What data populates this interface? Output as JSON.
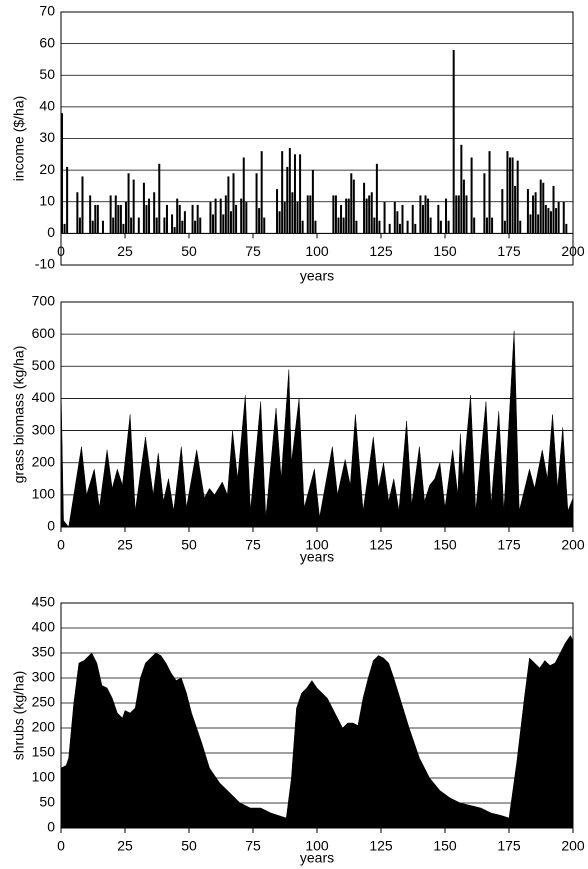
{
  "chart_data": [
    {
      "type": "bar",
      "x_label": "years",
      "y_label": "income ($/ha)",
      "color": "#000000",
      "grid": true,
      "xlim": [
        0,
        200
      ],
      "xticks": [
        0,
        25,
        50,
        75,
        100,
        125,
        150,
        175,
        200
      ],
      "ylim": [
        -10,
        70
      ],
      "yticks": [
        -10,
        0,
        10,
        20,
        30,
        40,
        50,
        60,
        70
      ],
      "x": [
        0,
        1,
        2,
        6,
        7,
        8,
        11,
        12,
        13,
        14,
        16,
        19,
        20,
        21,
        22,
        23,
        24,
        25,
        26,
        27,
        28,
        30,
        32,
        33,
        34,
        36,
        37,
        38,
        40,
        41,
        43,
        44,
        45,
        46,
        47,
        48,
        51,
        52,
        53,
        54,
        58,
        59,
        60,
        62,
        63,
        64,
        65,
        66,
        67,
        68,
        70,
        71,
        72,
        76,
        77,
        78,
        79,
        84,
        85,
        86,
        87,
        88,
        89,
        90,
        91,
        92,
        93,
        94,
        96,
        97,
        98,
        99,
        106,
        107,
        108,
        109,
        110,
        111,
        112,
        113,
        114,
        115,
        118,
        119,
        120,
        121,
        122,
        123,
        124,
        126,
        128,
        130,
        131,
        132,
        133,
        135,
        137,
        138,
        140,
        141,
        142,
        143,
        144,
        147,
        148,
        150,
        151,
        153,
        154,
        155,
        156,
        157,
        158,
        160,
        161,
        165,
        166,
        167,
        168,
        172,
        173,
        174,
        175,
        176,
        177,
        178,
        179,
        182,
        183,
        184,
        185,
        186,
        187,
        188,
        189,
        190,
        191,
        192,
        193,
        194,
        196,
        197
      ],
      "values": [
        38,
        3,
        21,
        13,
        5,
        18,
        12,
        4,
        9,
        9,
        4,
        12,
        5,
        12,
        9,
        9,
        3,
        10,
        19,
        5,
        17,
        5,
        16,
        9,
        11,
        13,
        5,
        22,
        5,
        9,
        6,
        2,
        11,
        9,
        4,
        7,
        9,
        4,
        9,
        5,
        10,
        6,
        11,
        11,
        6,
        12,
        18,
        7,
        19,
        9,
        11,
        24,
        10,
        19,
        8,
        26,
        5,
        14,
        7,
        26,
        10,
        21,
        27,
        13,
        25,
        10,
        25,
        4,
        12,
        12,
        20,
        4,
        12,
        12,
        5,
        9,
        5,
        11,
        11,
        19,
        17,
        4,
        16,
        11,
        12,
        13,
        5,
        22,
        4,
        10,
        3,
        10,
        7,
        3,
        9,
        4,
        9,
        3,
        12,
        9,
        12,
        11,
        5,
        9,
        4,
        11,
        4,
        58,
        12,
        12,
        28,
        17,
        12,
        24,
        5,
        19,
        5,
        26,
        5,
        14,
        4,
        26,
        24,
        24,
        15,
        23,
        4,
        14,
        6,
        12,
        13,
        6,
        17,
        16,
        9,
        8,
        7,
        15,
        8,
        10,
        10,
        3
      ]
    },
    {
      "type": "area",
      "x_label": "years",
      "y_label": "grass biomass (kg/ha)",
      "color": "#000000",
      "grid": true,
      "xlim": [
        0,
        200
      ],
      "xticks": [
        0,
        25,
        50,
        75,
        100,
        125,
        150,
        175,
        200
      ],
      "ylim": [
        0,
        700
      ],
      "yticks": [
        0,
        100,
        200,
        300,
        400,
        500,
        600,
        700
      ],
      "x": [
        0,
        1,
        3,
        8,
        10,
        13,
        15,
        18,
        20,
        22,
        24,
        27,
        29,
        33,
        36,
        38,
        40,
        42,
        44,
        47,
        49,
        53,
        56,
        58,
        60,
        63,
        65,
        67,
        69,
        72,
        74,
        78,
        80,
        84,
        86,
        89,
        90,
        93,
        95,
        99,
        101,
        106,
        108,
        111,
        113,
        115,
        118,
        122,
        124,
        126,
        128,
        130,
        132,
        135,
        137,
        140,
        142,
        144,
        146,
        148,
        150,
        153,
        155,
        156,
        157,
        160,
        162,
        166,
        168,
        171,
        173,
        177,
        179,
        183,
        185,
        188,
        190,
        192,
        194,
        196,
        198,
        200
      ],
      "values": [
        440,
        20,
        0,
        250,
        100,
        180,
        60,
        240,
        120,
        180,
        130,
        350,
        50,
        280,
        100,
        230,
        80,
        150,
        50,
        250,
        60,
        240,
        90,
        120,
        100,
        140,
        100,
        300,
        150,
        410,
        50,
        390,
        30,
        370,
        150,
        490,
        200,
        400,
        60,
        180,
        30,
        250,
        100,
        210,
        130,
        350,
        50,
        280,
        120,
        200,
        80,
        150,
        50,
        330,
        70,
        250,
        80,
        130,
        150,
        200,
        60,
        240,
        100,
        290,
        150,
        410,
        50,
        390,
        70,
        360,
        50,
        610,
        50,
        180,
        120,
        240,
        150,
        350,
        120,
        310,
        50,
        90
      ]
    },
    {
      "type": "area",
      "x_label": "years",
      "y_label": "shrubs (kg/ha)",
      "color": "#000000",
      "grid": true,
      "xlim": [
        0,
        200
      ],
      "xticks": [
        0,
        25,
        50,
        75,
        100,
        125,
        150,
        175,
        200
      ],
      "ylim": [
        0,
        450
      ],
      "yticks": [
        0,
        50,
        100,
        150,
        200,
        250,
        300,
        350,
        400,
        450
      ],
      "x": [
        0,
        2,
        3,
        5,
        7,
        9,
        12,
        14,
        16,
        18,
        20,
        22,
        24,
        25,
        27,
        29,
        31,
        33,
        35,
        37,
        39,
        41,
        43,
        45,
        47,
        49,
        51,
        55,
        58,
        62,
        66,
        70,
        74,
        78,
        82,
        85,
        88,
        90,
        92,
        94,
        96,
        98,
        100,
        102,
        104,
        106,
        108,
        110,
        112,
        114,
        116,
        118,
        120,
        122,
        124,
        126,
        128,
        130,
        133,
        136,
        140,
        144,
        148,
        152,
        156,
        160,
        164,
        168,
        172,
        175,
        178,
        181,
        183,
        185,
        187,
        189,
        191,
        193,
        195,
        197,
        199,
        200
      ],
      "values": [
        120,
        125,
        140,
        250,
        330,
        335,
        350,
        330,
        285,
        280,
        260,
        230,
        220,
        235,
        230,
        240,
        300,
        330,
        340,
        350,
        345,
        330,
        310,
        295,
        300,
        270,
        230,
        170,
        120,
        90,
        70,
        50,
        40,
        40,
        30,
        25,
        20,
        100,
        240,
        270,
        280,
        295,
        280,
        270,
        260,
        240,
        220,
        200,
        210,
        210,
        205,
        260,
        300,
        335,
        345,
        340,
        330,
        300,
        250,
        200,
        140,
        100,
        75,
        60,
        50,
        45,
        40,
        30,
        25,
        20,
        130,
        260,
        340,
        330,
        320,
        335,
        325,
        330,
        350,
        370,
        385,
        375
      ]
    }
  ]
}
